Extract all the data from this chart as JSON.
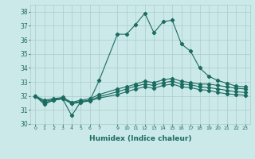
{
  "xlabel": "Humidex (Indice chaleur)",
  "background_color": "#cce9e9",
  "grid_color": "#aacccc",
  "line_color": "#1a6b60",
  "xlim_min": -0.5,
  "xlim_max": 23.5,
  "ylim_min": 30,
  "ylim_max": 38.5,
  "yticks": [
    30,
    31,
    32,
    33,
    34,
    35,
    36,
    37,
    38
  ],
  "xticks": [
    0,
    1,
    2,
    3,
    4,
    5,
    6,
    7,
    9,
    10,
    11,
    12,
    13,
    14,
    15,
    16,
    17,
    18,
    19,
    20,
    21,
    22,
    23
  ],
  "x_use": [
    0,
    1,
    2,
    3,
    4,
    5,
    6,
    7,
    9,
    10,
    11,
    12,
    13,
    14,
    15,
    16,
    17,
    18,
    19,
    20,
    21,
    22,
    23
  ],
  "series_max": [
    32.0,
    31.4,
    31.7,
    31.8,
    30.6,
    31.6,
    31.7,
    33.1,
    36.4,
    36.4,
    37.1,
    37.9,
    36.5,
    37.3,
    37.4,
    35.7,
    35.2,
    34.0,
    33.4,
    33.1,
    32.9,
    32.7,
    32.65
  ],
  "series_mean_high": [
    32.0,
    31.7,
    31.8,
    31.9,
    31.55,
    31.7,
    31.8,
    32.1,
    32.5,
    32.65,
    32.85,
    33.05,
    32.95,
    33.15,
    33.25,
    33.05,
    32.95,
    32.85,
    32.85,
    32.75,
    32.65,
    32.55,
    32.5
  ],
  "series_mean": [
    32.0,
    31.6,
    31.75,
    31.85,
    31.5,
    31.6,
    31.7,
    31.95,
    32.3,
    32.5,
    32.7,
    32.85,
    32.75,
    32.95,
    33.05,
    32.85,
    32.8,
    32.65,
    32.6,
    32.5,
    32.4,
    32.3,
    32.25
  ],
  "series_mean_low": [
    32.0,
    31.5,
    31.7,
    31.8,
    31.45,
    31.55,
    31.65,
    31.85,
    32.1,
    32.3,
    32.5,
    32.65,
    32.55,
    32.75,
    32.85,
    32.65,
    32.6,
    32.45,
    32.4,
    32.25,
    32.15,
    32.1,
    32.05
  ]
}
